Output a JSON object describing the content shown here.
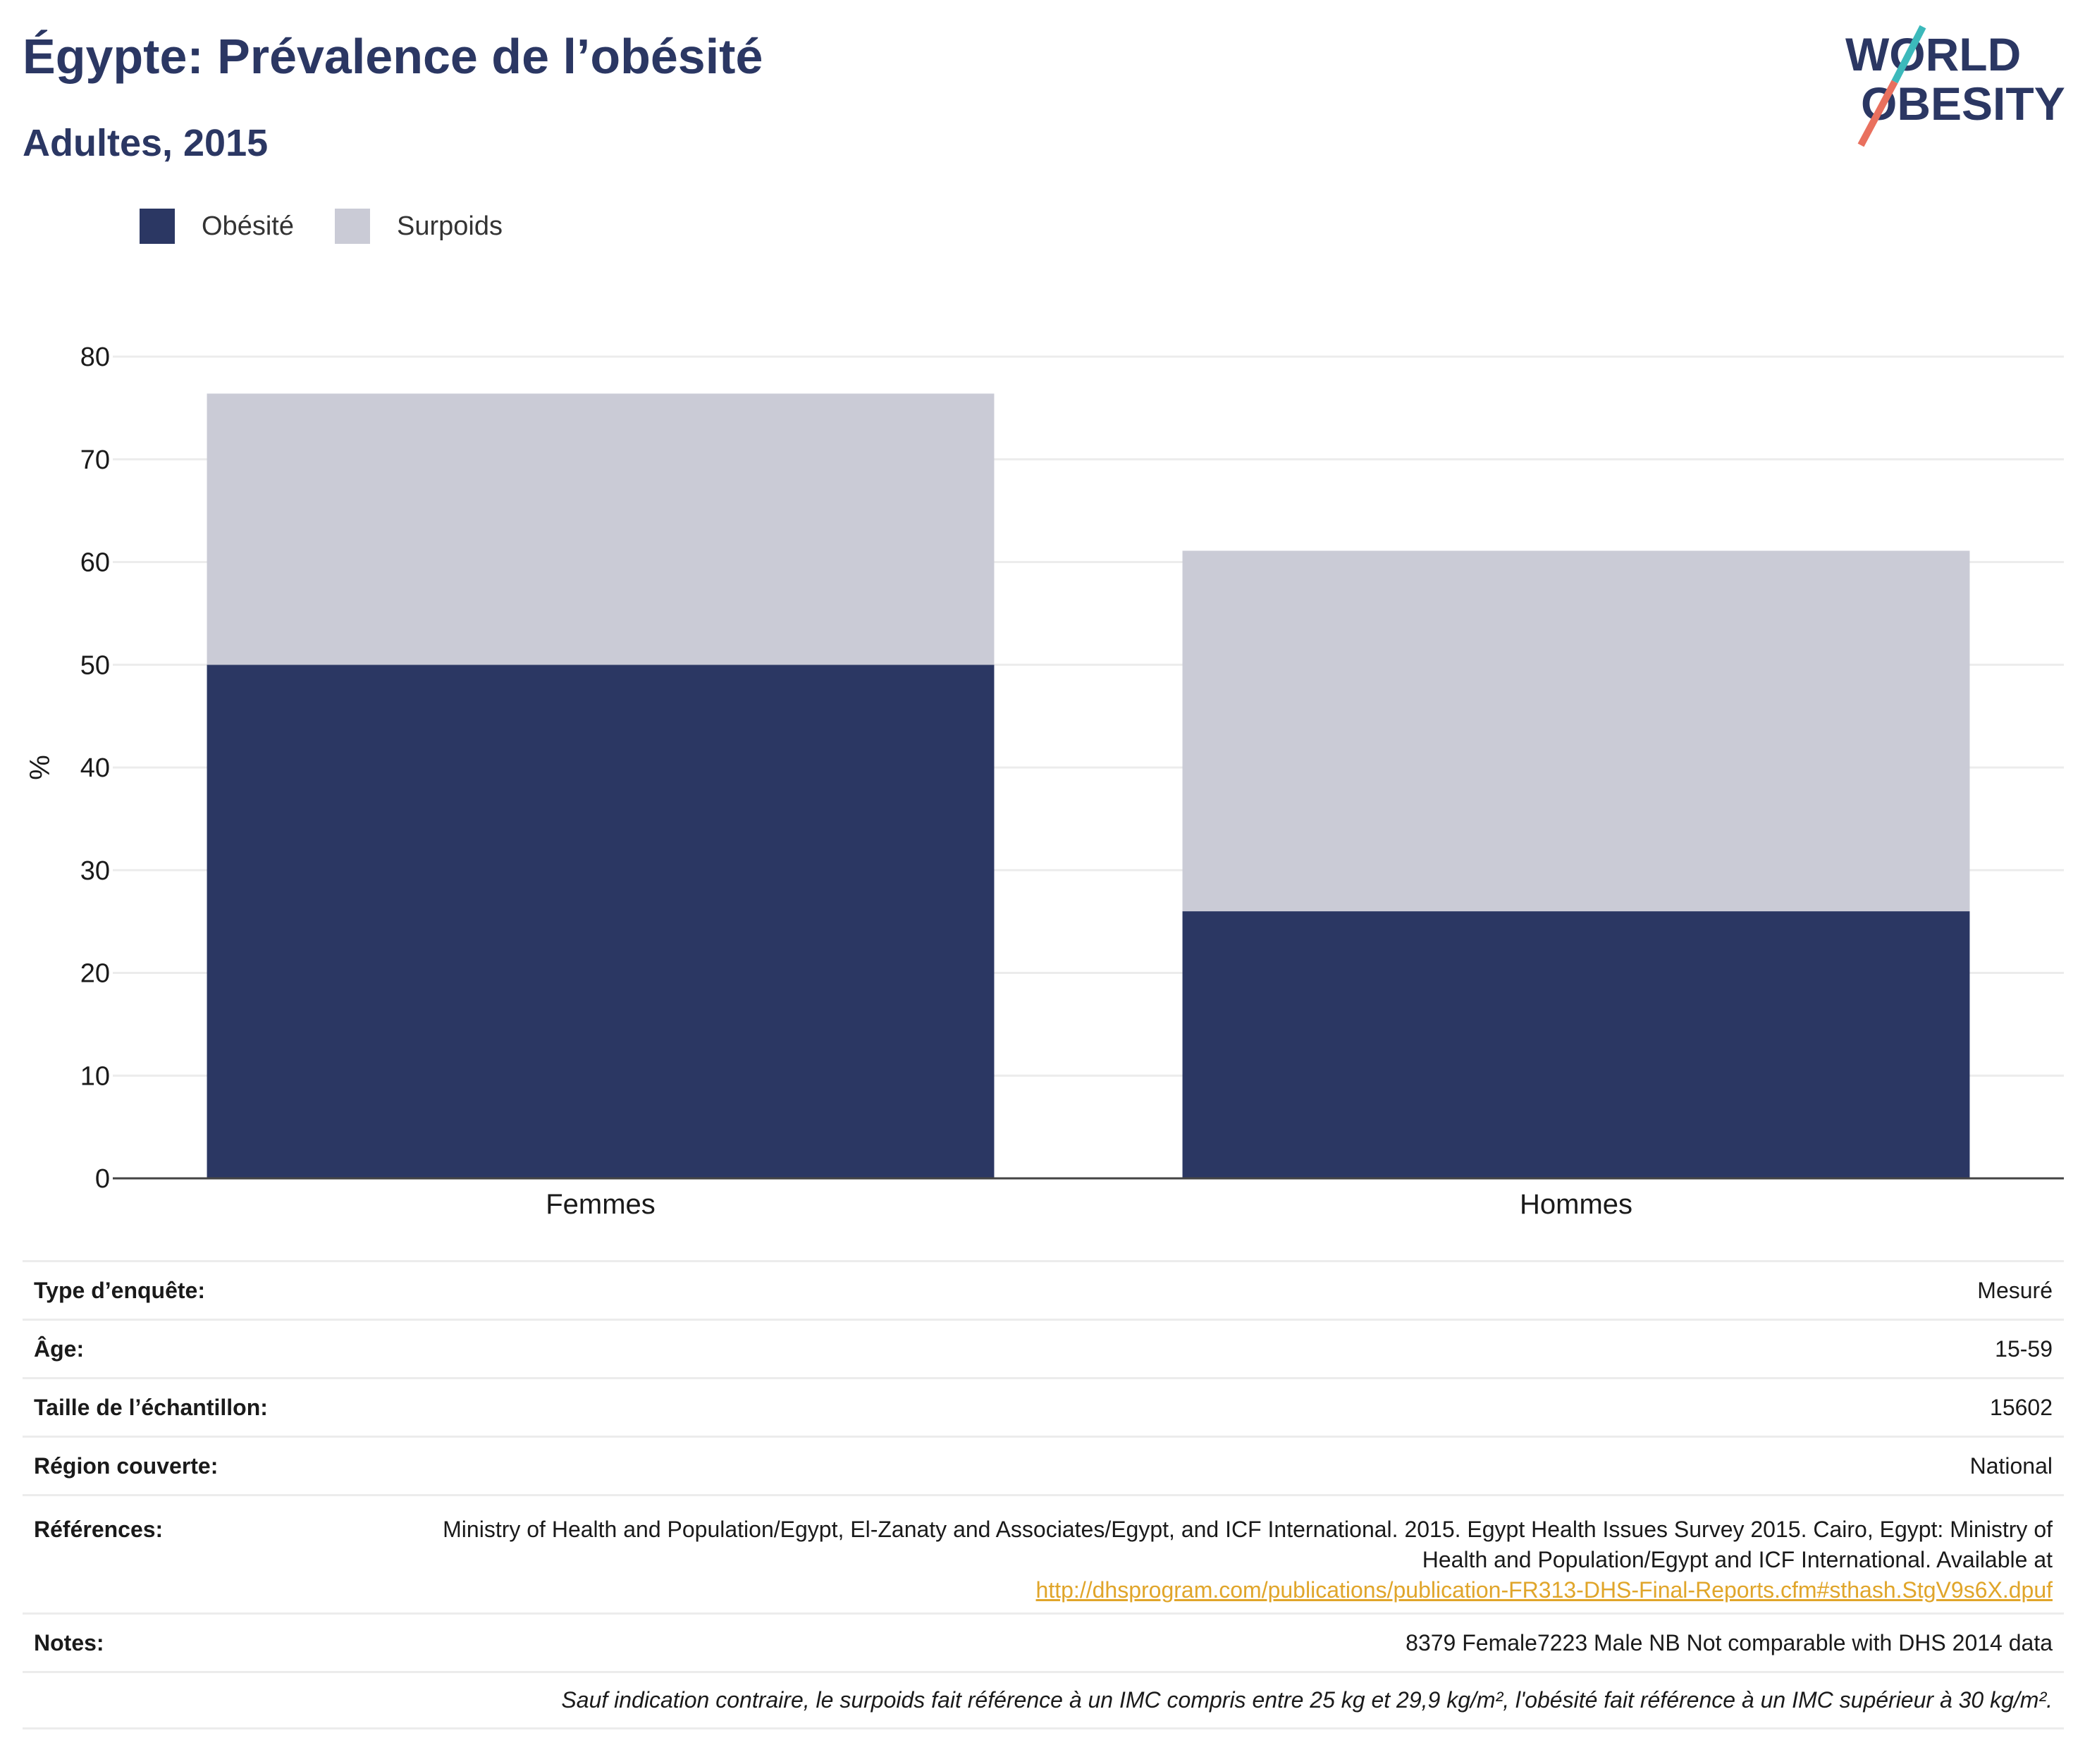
{
  "header": {
    "title": "Égypte: Prévalence de l’obésité",
    "subtitle": "Adultes, 2015",
    "logo_text_line1": "WORLD",
    "logo_text_line2": "OBESITY"
  },
  "legend": {
    "items": [
      {
        "label": "Obésité",
        "color": "#2b3763"
      },
      {
        "label": "Surpoids",
        "color": "#cacbd6"
      }
    ]
  },
  "chart_data": {
    "type": "bar",
    "stacked": true,
    "categories": [
      "Femmes",
      "Hommes"
    ],
    "series": [
      {
        "name": "Obésité",
        "color": "#2b3763",
        "values": [
          50.0,
          26.0
        ]
      },
      {
        "name": "Surpoids",
        "color": "#cacbd6",
        "values": [
          26.4,
          35.1
        ]
      }
    ],
    "ylabel": "%",
    "ylim": [
      0,
      80
    ],
    "yticks": [
      0,
      10,
      20,
      30,
      40,
      50,
      60,
      70,
      80
    ],
    "grid": true,
    "legend_position": "top-left"
  },
  "info_table": {
    "rows": [
      {
        "label": "Type d’enquête:",
        "value": "Mesuré"
      },
      {
        "label": "Âge:",
        "value": "15-59"
      },
      {
        "label": "Taille de l’échantillon:",
        "value": "15602"
      },
      {
        "label": "Région couverte:",
        "value": "National"
      }
    ],
    "references_label": "Références:",
    "references_text": "Ministry of Health and Population/Egypt, El-Zanaty and Associates/Egypt, and ICF International. 2015. Egypt Health Issues Survey 2015. Cairo, Egypt: Ministry of Health and Population/Egypt and ICF International. Available at",
    "references_link": "http://dhsprogram.com/publications/publication-FR313-DHS-Final-Reports.cfm#sthash.StgV9s6X.dpuf",
    "notes_label": "Notes:",
    "notes_text": "8379 Female7223 Male NB Not comparable with DHS 2014 data",
    "footnote": "Sauf indication contraire, le surpoids fait référence à un IMC compris entre 25 kg et 29,9 kg/m², l'obésité fait référence à un IMC supérieur à 30 kg/m²."
  }
}
